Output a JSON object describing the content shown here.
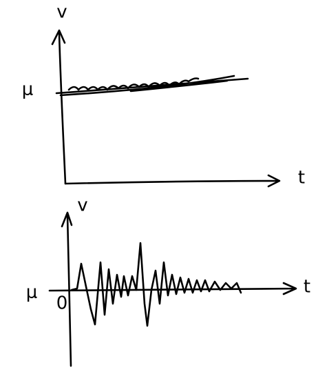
{
  "top": {
    "y_label": "v",
    "x_label": "t",
    "level_label": "μ"
  },
  "bottom": {
    "y_label": "v",
    "x_label": "t",
    "level_label": "μ",
    "origin_label": "0"
  }
}
